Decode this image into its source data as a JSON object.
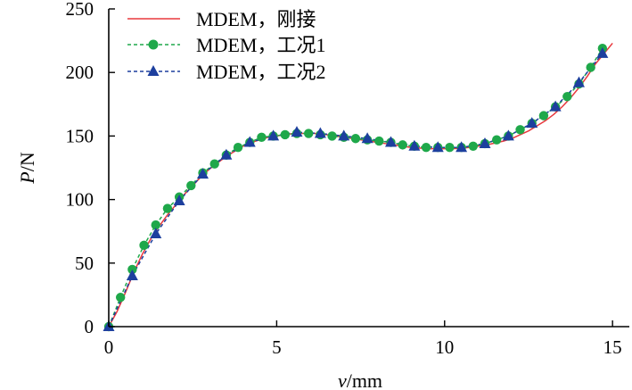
{
  "chart_data": {
    "type": "line",
    "xlabel_var": "v",
    "xlabel_unit": "/mm",
    "ylabel_var": "P",
    "ylabel_unit": "/N",
    "xlim": [
      0,
      15.5
    ],
    "ylim": [
      0,
      250
    ],
    "xticks": [
      "0",
      "5",
      "10",
      "15"
    ],
    "yticks": [
      "0",
      "50",
      "100",
      "150",
      "200",
      "250"
    ],
    "legend_position": "top-left",
    "grid": false,
    "series": [
      {
        "name": "MDEM，刚接",
        "style": "solid-line",
        "color": "#e8383d",
        "x": [
          0,
          0.25,
          0.5,
          0.75,
          1.0,
          1.25,
          1.5,
          1.75,
          2.0,
          2.25,
          2.5,
          2.75,
          3.0,
          3.25,
          3.5,
          3.75,
          4.0,
          4.25,
          4.5,
          4.75,
          5.0,
          5.25,
          5.5,
          5.75,
          6.0,
          6.25,
          6.5,
          6.75,
          7.0,
          7.25,
          7.5,
          7.75,
          8.0,
          8.25,
          8.5,
          8.75,
          9.0,
          9.25,
          9.5,
          9.75,
          10.0,
          10.25,
          10.5,
          10.75,
          11.0,
          11.25,
          11.5,
          11.75,
          12.0,
          12.25,
          12.5,
          12.75,
          13.0,
          13.25,
          13.5,
          13.75,
          14.0,
          14.25,
          14.5,
          14.75,
          15.0
        ],
        "y": [
          0,
          12,
          27,
          43,
          57,
          69,
          79,
          88,
          96,
          104,
          111,
          118,
          124,
          129,
          134,
          138,
          142,
          145,
          147,
          149,
          150,
          151,
          152,
          152,
          152,
          152,
          151,
          150,
          149,
          148,
          147,
          146,
          145,
          144,
          143,
          142,
          141,
          140.5,
          140,
          140,
          140,
          140,
          140.5,
          141,
          142,
          143,
          144.5,
          146,
          148,
          151,
          154,
          158,
          162,
          167,
          173,
          180,
          188,
          197,
          207,
          215,
          223
        ]
      },
      {
        "name": "MDEM，工况1",
        "style": "dashed-circle",
        "color": "#1fa84a",
        "x": [
          0,
          0.35,
          0.7,
          1.05,
          1.4,
          1.75,
          2.1,
          2.45,
          2.8,
          3.15,
          3.5,
          3.85,
          4.2,
          4.55,
          4.9,
          5.25,
          5.6,
          5.95,
          6.3,
          6.65,
          7.0,
          7.35,
          7.7,
          8.05,
          8.4,
          8.75,
          9.1,
          9.45,
          9.8,
          10.15,
          10.5,
          10.85,
          11.2,
          11.55,
          11.9,
          12.25,
          12.6,
          12.95,
          13.3,
          13.65,
          14.0,
          14.35,
          14.7
        ],
        "y": [
          0,
          23,
          45,
          64,
          80,
          93,
          102,
          111,
          121,
          128,
          135,
          141,
          145,
          149,
          150,
          151,
          152,
          152,
          151,
          150,
          149,
          148,
          147,
          146,
          145,
          143,
          142,
          141,
          141,
          141,
          141,
          142,
          144,
          147,
          150,
          155,
          160,
          166,
          173,
          181,
          191,
          204,
          219
        ]
      },
      {
        "name": "MDEM，工况2",
        "style": "dashed-triangle",
        "color": "#1d3f9e",
        "x": [
          0,
          0.7,
          1.4,
          2.1,
          2.8,
          3.5,
          4.2,
          4.9,
          5.6,
          6.3,
          7.0,
          7.7,
          8.4,
          9.1,
          9.8,
          10.5,
          11.2,
          11.9,
          12.6,
          13.3,
          14.0,
          14.7
        ],
        "y": [
          0,
          40,
          73,
          99,
          120,
          135,
          145,
          150,
          153,
          152,
          150,
          148,
          145,
          142,
          141,
          141,
          144,
          150,
          160,
          173,
          192,
          215
        ]
      }
    ]
  }
}
